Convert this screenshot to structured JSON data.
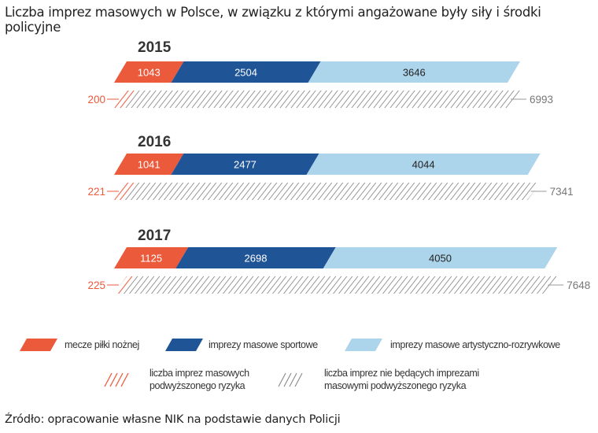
{
  "title": "Liczba imprez masowych w Polsce, w związku z którymi angażowane były siły i środki policyjne",
  "source": "Źródło: opracowanie własne NIK na podstawie danych Policji",
  "chart_data": {
    "type": "bar",
    "orientation": "horizontal-stacked",
    "categories": [
      "2015",
      "2016",
      "2017"
    ],
    "series": [
      {
        "name": "mecze piłki nożnej",
        "color": "#ec5a3c",
        "values": [
          1043,
          1041,
          1125
        ]
      },
      {
        "name": "imprezy masowe sportowe",
        "color": "#1f5497",
        "values": [
          2504,
          2477,
          2698
        ]
      },
      {
        "name": "imprezy masowe artystyczno-rozrywkowe",
        "color": "#acd4ea",
        "values": [
          3646,
          4044,
          4050
        ]
      }
    ],
    "hatched_series": [
      {
        "name": "liczba imprez masowych podwyższonego ryzyka",
        "color": "#ec5a3c",
        "values": [
          200,
          221,
          225
        ]
      },
      {
        "name": "liczba imprez nie będących imprezami masowymi podwyższonego ryzyka",
        "color": "#888888",
        "values": [
          6993,
          7341,
          7648
        ]
      }
    ],
    "legend_placement": "bottom",
    "grid": false
  },
  "legend": {
    "football": "mecze piłki nożnej",
    "sport": "imprezy masowe sportowe",
    "art": "imprezy masowe artystyczno-rozrywkowe",
    "high_risk_1": "liczba imprez masowych",
    "high_risk_2": "podwyższonego ryzyka",
    "other_1": "liczba imprez nie będących imprezami",
    "other_2": "masowymi podwyższonego ryzyka"
  }
}
